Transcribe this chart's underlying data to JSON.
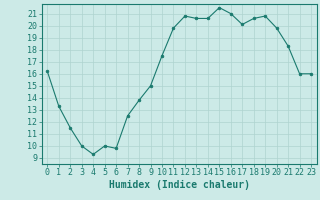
{
  "x": [
    0,
    1,
    2,
    3,
    4,
    5,
    6,
    7,
    8,
    9,
    10,
    11,
    12,
    13,
    14,
    15,
    16,
    17,
    18,
    19,
    20,
    21,
    22,
    23
  ],
  "y": [
    16.2,
    13.3,
    11.5,
    10.0,
    9.3,
    10.0,
    9.8,
    12.5,
    13.8,
    15.0,
    17.5,
    19.8,
    20.8,
    20.6,
    20.6,
    21.5,
    21.0,
    20.1,
    20.6,
    20.8,
    19.8,
    18.3,
    16.0,
    16.0
  ],
  "line_color": "#1a7a6e",
  "marker": "o",
  "marker_size": 2,
  "bg_color": "#cceae7",
  "grid_color": "#afd4d0",
  "xlabel": "Humidex (Indice chaleur)",
  "xlim": [
    -0.5,
    23.5
  ],
  "ylim": [
    8.5,
    21.8
  ],
  "yticks": [
    9,
    10,
    11,
    12,
    13,
    14,
    15,
    16,
    17,
    18,
    19,
    20,
    21
  ],
  "xticks": [
    0,
    1,
    2,
    3,
    4,
    5,
    6,
    7,
    8,
    9,
    10,
    11,
    12,
    13,
    14,
    15,
    16,
    17,
    18,
    19,
    20,
    21,
    22,
    23
  ],
  "tick_color": "#1a7a6e",
  "label_fontsize": 7,
  "tick_fontsize": 6
}
